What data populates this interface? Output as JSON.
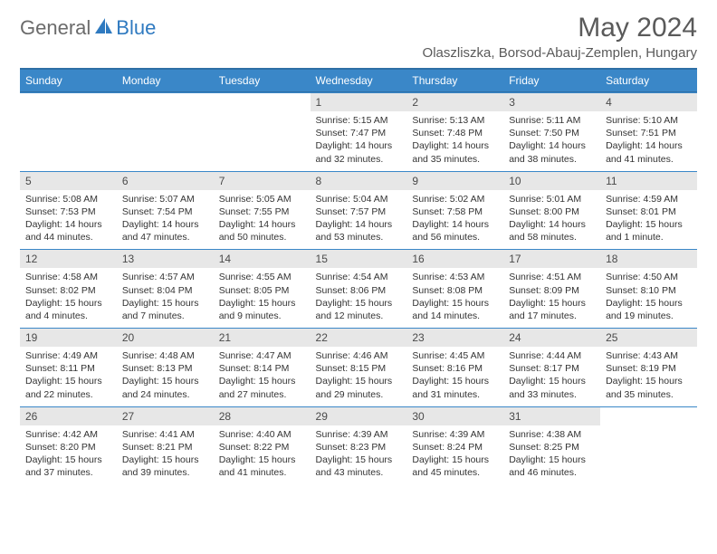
{
  "brand": {
    "part1": "General",
    "part2": "Blue",
    "icon_color": "#2f7ac0"
  },
  "title": "May 2024",
  "location": "Olaszliszka, Borsod-Abauj-Zemplen, Hungary",
  "colors": {
    "header_bg": "#3a87c8",
    "header_border": "#2f6fa5",
    "daynum_bg": "#e7e7e7",
    "text": "#333333",
    "title_text": "#5a5a5a"
  },
  "day_headers": [
    "Sunday",
    "Monday",
    "Tuesday",
    "Wednesday",
    "Thursday",
    "Friday",
    "Saturday"
  ],
  "weeks": [
    [
      null,
      null,
      null,
      {
        "n": "1",
        "sr": "5:15 AM",
        "ss": "7:47 PM",
        "dl": "Daylight: 14 hours and 32 minutes."
      },
      {
        "n": "2",
        "sr": "5:13 AM",
        "ss": "7:48 PM",
        "dl": "Daylight: 14 hours and 35 minutes."
      },
      {
        "n": "3",
        "sr": "5:11 AM",
        "ss": "7:50 PM",
        "dl": "Daylight: 14 hours and 38 minutes."
      },
      {
        "n": "4",
        "sr": "5:10 AM",
        "ss": "7:51 PM",
        "dl": "Daylight: 14 hours and 41 minutes."
      }
    ],
    [
      {
        "n": "5",
        "sr": "5:08 AM",
        "ss": "7:53 PM",
        "dl": "Daylight: 14 hours and 44 minutes."
      },
      {
        "n": "6",
        "sr": "5:07 AM",
        "ss": "7:54 PM",
        "dl": "Daylight: 14 hours and 47 minutes."
      },
      {
        "n": "7",
        "sr": "5:05 AM",
        "ss": "7:55 PM",
        "dl": "Daylight: 14 hours and 50 minutes."
      },
      {
        "n": "8",
        "sr": "5:04 AM",
        "ss": "7:57 PM",
        "dl": "Daylight: 14 hours and 53 minutes."
      },
      {
        "n": "9",
        "sr": "5:02 AM",
        "ss": "7:58 PM",
        "dl": "Daylight: 14 hours and 56 minutes."
      },
      {
        "n": "10",
        "sr": "5:01 AM",
        "ss": "8:00 PM",
        "dl": "Daylight: 14 hours and 58 minutes."
      },
      {
        "n": "11",
        "sr": "4:59 AM",
        "ss": "8:01 PM",
        "dl": "Daylight: 15 hours and 1 minute."
      }
    ],
    [
      {
        "n": "12",
        "sr": "4:58 AM",
        "ss": "8:02 PM",
        "dl": "Daylight: 15 hours and 4 minutes."
      },
      {
        "n": "13",
        "sr": "4:57 AM",
        "ss": "8:04 PM",
        "dl": "Daylight: 15 hours and 7 minutes."
      },
      {
        "n": "14",
        "sr": "4:55 AM",
        "ss": "8:05 PM",
        "dl": "Daylight: 15 hours and 9 minutes."
      },
      {
        "n": "15",
        "sr": "4:54 AM",
        "ss": "8:06 PM",
        "dl": "Daylight: 15 hours and 12 minutes."
      },
      {
        "n": "16",
        "sr": "4:53 AM",
        "ss": "8:08 PM",
        "dl": "Daylight: 15 hours and 14 minutes."
      },
      {
        "n": "17",
        "sr": "4:51 AM",
        "ss": "8:09 PM",
        "dl": "Daylight: 15 hours and 17 minutes."
      },
      {
        "n": "18",
        "sr": "4:50 AM",
        "ss": "8:10 PM",
        "dl": "Daylight: 15 hours and 19 minutes."
      }
    ],
    [
      {
        "n": "19",
        "sr": "4:49 AM",
        "ss": "8:11 PM",
        "dl": "Daylight: 15 hours and 22 minutes."
      },
      {
        "n": "20",
        "sr": "4:48 AM",
        "ss": "8:13 PM",
        "dl": "Daylight: 15 hours and 24 minutes."
      },
      {
        "n": "21",
        "sr": "4:47 AM",
        "ss": "8:14 PM",
        "dl": "Daylight: 15 hours and 27 minutes."
      },
      {
        "n": "22",
        "sr": "4:46 AM",
        "ss": "8:15 PM",
        "dl": "Daylight: 15 hours and 29 minutes."
      },
      {
        "n": "23",
        "sr": "4:45 AM",
        "ss": "8:16 PM",
        "dl": "Daylight: 15 hours and 31 minutes."
      },
      {
        "n": "24",
        "sr": "4:44 AM",
        "ss": "8:17 PM",
        "dl": "Daylight: 15 hours and 33 minutes."
      },
      {
        "n": "25",
        "sr": "4:43 AM",
        "ss": "8:19 PM",
        "dl": "Daylight: 15 hours and 35 minutes."
      }
    ],
    [
      {
        "n": "26",
        "sr": "4:42 AM",
        "ss": "8:20 PM",
        "dl": "Daylight: 15 hours and 37 minutes."
      },
      {
        "n": "27",
        "sr": "4:41 AM",
        "ss": "8:21 PM",
        "dl": "Daylight: 15 hours and 39 minutes."
      },
      {
        "n": "28",
        "sr": "4:40 AM",
        "ss": "8:22 PM",
        "dl": "Daylight: 15 hours and 41 minutes."
      },
      {
        "n": "29",
        "sr": "4:39 AM",
        "ss": "8:23 PM",
        "dl": "Daylight: 15 hours and 43 minutes."
      },
      {
        "n": "30",
        "sr": "4:39 AM",
        "ss": "8:24 PM",
        "dl": "Daylight: 15 hours and 45 minutes."
      },
      {
        "n": "31",
        "sr": "4:38 AM",
        "ss": "8:25 PM",
        "dl": "Daylight: 15 hours and 46 minutes."
      },
      null
    ]
  ],
  "labels": {
    "sunrise": "Sunrise:",
    "sunset": "Sunset:"
  }
}
